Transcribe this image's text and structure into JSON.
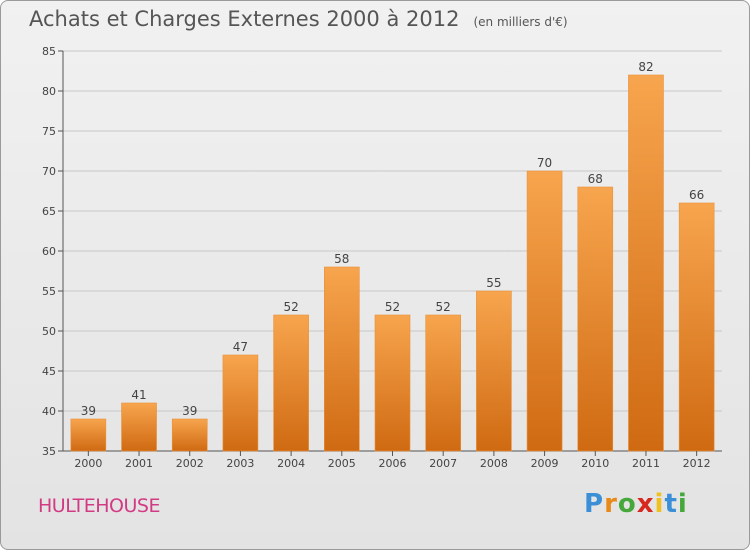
{
  "title": "Achats et Charges Externes 2000 à 2012",
  "subtitle": "(en milliers d'€)",
  "location": "HULTEHOUSE",
  "logo": {
    "letters": [
      "P",
      "r",
      "o",
      "x",
      "i",
      "t",
      "i"
    ],
    "colors": [
      "#3a8fd6",
      "#e88a1a",
      "#46a83a",
      "#d6281f",
      "#f0c020",
      "#3a8fd6",
      "#46a83a"
    ]
  },
  "colors": {
    "bar_top": "#f7a54e",
    "bar_bottom": "#cf6a12",
    "grid": "#c8c8c8",
    "axis": "#555555"
  },
  "chart_data": {
    "type": "bar",
    "categories": [
      "2000",
      "2001",
      "2002",
      "2003",
      "2004",
      "2005",
      "2006",
      "2007",
      "2008",
      "2009",
      "2010",
      "2011",
      "2012"
    ],
    "values": [
      39,
      41,
      39,
      47,
      52,
      58,
      52,
      52,
      55,
      70,
      68,
      82,
      66
    ],
    "ylim": [
      35,
      85
    ],
    "yticks": [
      35,
      40,
      45,
      50,
      55,
      60,
      65,
      70,
      75,
      80,
      85
    ],
    "grid": true,
    "data_labels": true,
    "xlabel": "",
    "ylabel": ""
  }
}
